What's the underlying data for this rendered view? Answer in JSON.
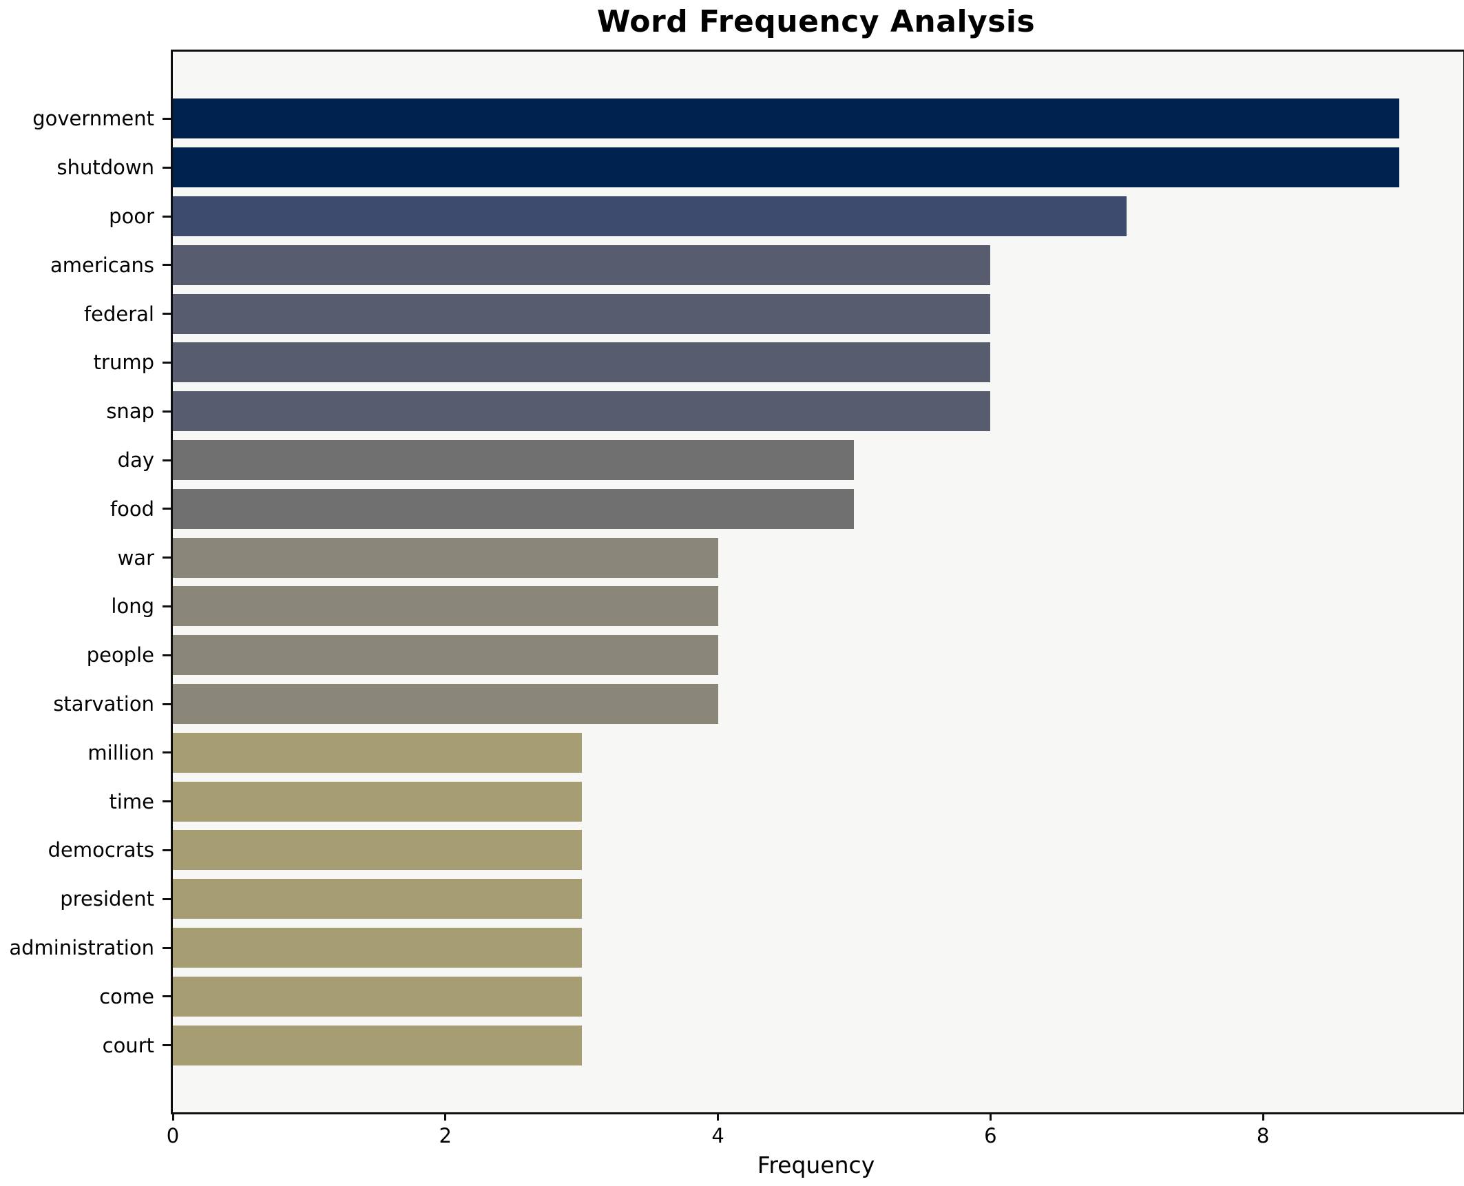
{
  "title": "Word Frequency Analysis",
  "xlabel": "Frequency",
  "colors": {
    "figure_bg": "#ffffff",
    "axes_bg": "#f7f7f6",
    "spine": "#0f0f0f",
    "text": "#000000"
  },
  "chart_data": {
    "type": "bar",
    "orientation": "horizontal",
    "title": "Word Frequency Analysis",
    "xlabel": "Frequency",
    "ylabel": "",
    "grid": false,
    "legend": false,
    "xlim": [
      0,
      9.47
    ],
    "xticks": [
      0,
      2,
      4,
      6,
      8
    ],
    "categories": [
      "government",
      "shutdown",
      "poor",
      "americans",
      "federal",
      "trump",
      "snap",
      "day",
      "food",
      "war",
      "long",
      "people",
      "starvation",
      "million",
      "time",
      "democrats",
      "president",
      "administration",
      "come",
      "court"
    ],
    "values": [
      9,
      9,
      7,
      6,
      6,
      6,
      6,
      5,
      5,
      4,
      4,
      4,
      4,
      3,
      3,
      3,
      3,
      3,
      3,
      3
    ],
    "bar_colors": [
      "#00224e",
      "#00224e",
      "#3d4c6e",
      "#575d6e",
      "#575d6e",
      "#575d6e",
      "#575d6e",
      "#6f706f",
      "#6f706f",
      "#8a8778",
      "#8a8778",
      "#8a8778",
      "#8a8778",
      "#a79d72",
      "#a79d72",
      "#a79d72",
      "#a79d72",
      "#a79d72",
      "#a79d72",
      "#a79d72"
    ]
  }
}
